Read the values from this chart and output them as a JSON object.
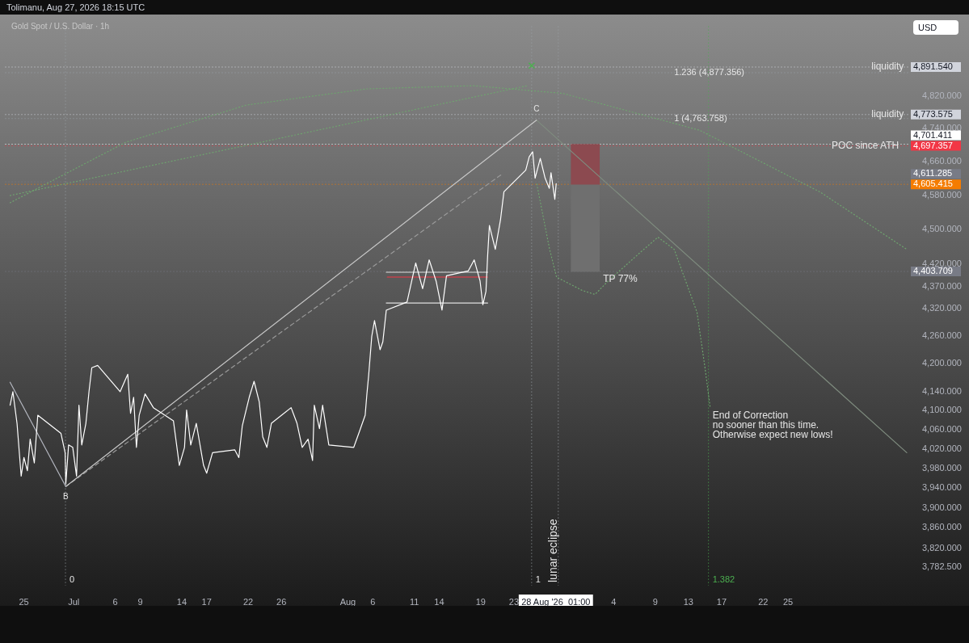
{
  "chart_data": {
    "type": "line",
    "title": "Gold Spot / U.S. Dollar · 1h",
    "subtitle": "Tolimanu, Aug 27, 2026 18:15 UTC",
    "ylabel": "USD",
    "log": true,
    "grid": false,
    "legend": false,
    "marker": "none",
    "xlim": [
      "2026-06-22T18:00",
      "2026-10-09T14:00"
    ],
    "xticks": [
      {
        "value": "2026-06-25",
        "label": "25"
      },
      {
        "value": "2026-07-01",
        "label": "Jul"
      },
      {
        "value": "2026-07-06",
        "label": "6"
      },
      {
        "value": "2026-07-09",
        "label": "9"
      },
      {
        "value": "2026-07-14",
        "label": "14"
      },
      {
        "value": "2026-07-17",
        "label": "17"
      },
      {
        "value": "2026-07-22",
        "label": "22"
      },
      {
        "value": "2026-07-26",
        "label": "26"
      },
      {
        "value": "2026-08-03",
        "label": "Aug"
      },
      {
        "value": "2026-08-06",
        "label": "6"
      },
      {
        "value": "2026-08-11",
        "label": "11"
      },
      {
        "value": "2026-08-14",
        "label": "14"
      },
      {
        "value": "2026-08-19",
        "label": "19"
      },
      {
        "value": "2026-08-23",
        "label": "23"
      },
      {
        "value": "2026-08-28T01:00",
        "label": "28 Aug '26  01:00"
      },
      {
        "value": "2026-09-04",
        "label": "4"
      },
      {
        "value": "2026-09-09",
        "label": "9"
      },
      {
        "value": "2026-09-13",
        "label": "13"
      },
      {
        "value": "2026-09-17",
        "label": "17"
      },
      {
        "value": "2026-09-22",
        "label": "22"
      },
      {
        "value": "2026-09-25",
        "label": "25"
      }
    ],
    "ylim": [
      3747,
      4995
    ],
    "yticks": [
      {
        "value": 3782.5,
        "label": "3,782.500"
      },
      {
        "value": 3820,
        "label": "3,820.000"
      },
      {
        "value": 3860,
        "label": "3,860.000"
      },
      {
        "value": 3900,
        "label": "3,900.000"
      },
      {
        "value": 3940,
        "label": "3,940.000"
      },
      {
        "value": 3980,
        "label": "3,980.000"
      },
      {
        "value": 4020,
        "label": "4,020.000"
      },
      {
        "value": 4060,
        "label": "4,060.000"
      },
      {
        "value": 4100,
        "label": "4,100.000"
      },
      {
        "value": 4140,
        "label": "4,140.000"
      },
      {
        "value": 4200,
        "label": "4,200.000"
      },
      {
        "value": 4260,
        "label": "4,260.000"
      },
      {
        "value": 4320,
        "label": "4,320.000"
      },
      {
        "value": 4370,
        "label": "4,370.000"
      },
      {
        "value": 4420,
        "label": "4,420.000"
      },
      {
        "value": 4500,
        "label": "4,500.000"
      },
      {
        "value": 4580,
        "label": "4,580.000"
      },
      {
        "value": 4660,
        "label": "4,660.000"
      },
      {
        "value": 4740,
        "label": "4,740.000"
      },
      {
        "value": 4820,
        "label": "4,820.000"
      }
    ],
    "series": [
      {
        "color": "#ffffff",
        "x": [
          "2026-06-23T08:00",
          "2026-06-23T16:00",
          "2026-06-24T04:00",
          "2026-06-24T16:00",
          "2026-06-25T00:00",
          "2026-06-25T10:00",
          "2026-06-25T18:00",
          "2026-06-26T06:00",
          "2026-06-26T16:00",
          "2026-06-29T11:00",
          "2026-06-29T23:00",
          "2026-06-30T01:00",
          "2026-06-30T09:00",
          "2026-06-30T21:00",
          "2026-07-01T08:00",
          "2026-07-01T15:00",
          "2026-07-01T23:00",
          "2026-07-02T11:00",
          "2026-07-02T20:00",
          "2026-07-03T04:00",
          "2026-07-03T21:00",
          "2026-07-06T14:00",
          "2026-07-07T12:00",
          "2026-07-07T20:00",
          "2026-07-08T05:00",
          "2026-07-08T13:00",
          "2026-07-08T21:00",
          "2026-07-09T14:00",
          "2026-07-10T14:00",
          "2026-07-13T00:00",
          "2026-07-13T17:00",
          "2026-07-14T08:00",
          "2026-07-14T14:00",
          "2026-07-15T02:00",
          "2026-07-15T18:00",
          "2026-07-16T15:00",
          "2026-07-17T00:00",
          "2026-07-17T17:00",
          "2026-07-20T09:00",
          "2026-07-20T21:00",
          "2026-07-21T07:00",
          "2026-07-22T03:00",
          "2026-07-22T17:00",
          "2026-07-23T08:00",
          "2026-07-23T18:00",
          "2026-07-24T06:00",
          "2026-07-24T19:00",
          "2026-07-27T04:00",
          "2026-07-27T21:00",
          "2026-07-28T12:00",
          "2026-07-29T05:00",
          "2026-07-29T18:00",
          "2026-07-29T23:00",
          "2026-07-30T14:00",
          "2026-07-30T23:00",
          "2026-07-31T17:00",
          "2026-08-03T17:00",
          "2026-08-04T10:00",
          "2026-08-05T02:00",
          "2026-08-05T07:00",
          "2026-08-05T12:00",
          "2026-08-05T21:00",
          "2026-08-06T05:00",
          "2026-08-06T21:00",
          "2026-08-07T05:00",
          "2026-08-07T15:00",
          "2026-08-10T03:00",
          "2026-08-11T04:00",
          "2026-08-12T00:00",
          "2026-08-12T19:00",
          "2026-08-13T15:00",
          "2026-08-14T08:00",
          "2026-08-14T21:00",
          "2026-08-17T12:00",
          "2026-08-18T05:00",
          "2026-08-18T22:00",
          "2026-08-19T06:00",
          "2026-08-19T15:00",
          "2026-08-19T20:00",
          "2026-08-20T01:00",
          "2026-08-20T18:00",
          "2026-08-21T09:00",
          "2026-08-21T19:00",
          "2026-08-24T10:00",
          "2026-08-24T20:00",
          "2026-08-25T06:00",
          "2026-08-25T13:00",
          "2026-08-26T04:00",
          "2026-08-26T18:00",
          "2026-08-27T06:00",
          "2026-08-27T11:00",
          "2026-08-27T22:00",
          "2026-08-28T02:00"
        ],
        "values": [
          4111,
          4140,
          4073,
          3964,
          4002,
          3975,
          4040,
          3991,
          4090,
          4052,
          4012,
          3948,
          4028,
          4023,
          3964,
          4111,
          4028,
          4073,
          4140,
          4191,
          4196,
          4140,
          4177,
          4094,
          4128,
          4023,
          4090,
          4135,
          4106,
          4078,
          3986,
          4023,
          4101,
          4028,
          4073,
          3986,
          3970,
          4012,
          4018,
          4002,
          4068,
          4128,
          4162,
          4118,
          4045,
          4023,
          4073,
          4106,
          4073,
          4023,
          4040,
          3996,
          4111,
          4062,
          4111,
          4028,
          4023,
          4057,
          4090,
          4135,
          4174,
          4259,
          4294,
          4230,
          4247,
          4317,
          4335,
          4423,
          4365,
          4430,
          4382,
          4317,
          4394,
          4405,
          4430,
          4382,
          4329,
          4359,
          4441,
          4509,
          4454,
          4522,
          4588,
          4639,
          4671,
          4683,
          4620,
          4667,
          4620,
          4596,
          4633,
          4570,
          4607
        ]
      },
      {
        "type": "line",
        "color": "#b2b5be",
        "x": [
          "2026-06-23T08:00",
          "2026-06-30T01:00"
        ],
        "values": [
          4160,
          3943
        ]
      },
      {
        "type": "line",
        "color": "#c8c8c8",
        "x": [
          "2026-06-30T01:00",
          "2026-08-25T17:00"
        ],
        "values": [
          3943,
          4760
        ]
      },
      {
        "type": "line",
        "color": "#9a9a9a",
        "line_style": "dashed",
        "x": [
          "2026-06-30T01:00",
          "2026-08-21T14:00"
        ],
        "values": [
          3943,
          4630
        ]
      },
      {
        "type": "line",
        "color": "#6fa56f",
        "line_style": "dotted",
        "x": [
          "2026-06-23T08:00",
          "2026-08-24T15:00"
        ],
        "values": [
          4579,
          4845
        ]
      },
      {
        "type": "line",
        "color": "#6fa56f",
        "line_style": "dotted",
        "x": [
          "2026-06-23T08:00",
          "2026-07-07T06:00",
          "2026-07-21T19:00",
          "2026-08-05T07:00",
          "2026-08-18T02:00",
          "2026-08-28T20:00",
          "2026-09-14T09:00",
          "2026-09-28T21:00",
          "2026-10-09T07:00"
        ],
        "values": [
          4562,
          4706,
          4797,
          4837,
          4845,
          4826,
          4735,
          4587,
          4454
        ]
      },
      {
        "type": "line",
        "color": "#6fa56f",
        "line_style": "dotted",
        "x": [
          "2026-08-25T18:00",
          "2026-08-26T13:00",
          "2026-08-27T07:00",
          "2026-08-28T03:00",
          "2026-08-31T05:00",
          "2026-09-01T18:00",
          "2026-09-03T08:00",
          "2026-09-07T02:00",
          "2026-09-09T08:00",
          "2026-09-11T07:00",
          "2026-09-14T01:00",
          "2026-09-15T00:00",
          "2026-09-15T15:00"
        ],
        "values": [
          4606,
          4527,
          4454,
          4391,
          4361,
          4352,
          4382,
          4445,
          4482,
          4454,
          4312,
          4191,
          4106
        ]
      },
      {
        "type": "line",
        "color": "#7f8c7f",
        "x": [
          "2026-08-25T17:00",
          "2026-10-09T07:00"
        ],
        "values": [
          4760,
          4012
        ]
      },
      {
        "type": "line",
        "color": "#e0e0e0",
        "x": [
          "2026-08-07T15:00",
          "2026-08-19T20:00"
        ],
        "values": [
          4402,
          4402
        ]
      },
      {
        "type": "line",
        "color": "#e0e0e0",
        "x": [
          "2026-08-07T15:00",
          "2026-08-19T20:00"
        ],
        "values": [
          4333,
          4333
        ]
      },
      {
        "type": "line",
        "color": "#f23645",
        "x": [
          "2026-08-07T18:00",
          "2026-08-19T20:00"
        ],
        "values": [
          4391,
          4391
        ]
      },
      {
        "type": "scatter",
        "color": "#4caf50",
        "marker": "cross",
        "x": [
          "2026-08-25T03:00"
        ],
        "values": [
          4895
        ]
      },
      {
        "type": "bar",
        "color": "#8c4a50",
        "x": [
          "2026-08-31T14:00"
        ],
        "base": [
          4605.415
        ],
        "values": [
          95.996
        ]
      },
      {
        "type": "bar",
        "color": "#6f6f6f",
        "x": [
          "2026-08-31T14:00"
        ],
        "base": [
          4403.709
        ],
        "values": [
          201.706
        ]
      }
    ],
    "ref_lines": [
      {
        "axis": "y",
        "value": 4891.54,
        "label": "4,891.540",
        "color": "#d1d4dc",
        "line_style": "dotted"
      },
      {
        "axis": "y",
        "value": 4877.356,
        "label": "1.236 (4,877.356)",
        "line_style": "dotted"
      },
      {
        "axis": "y",
        "value": 4773.575,
        "label": "4,773.575",
        "color": "#d1d4dc",
        "line_style": "dotted"
      },
      {
        "axis": "y",
        "value": 4763.758,
        "label": "1 (4,763.758)",
        "line_style": "dotted"
      },
      {
        "axis": "y",
        "value": 4701.411,
        "label": "4,701.411",
        "color": "#ffffff",
        "line_style": "dotted"
      },
      {
        "axis": "y",
        "value": 4697.357,
        "label": "4,697.357",
        "color": "#f23645",
        "line_style": "dotted"
      },
      {
        "axis": "y",
        "value": 4611.285,
        "label": "4,611.285",
        "color": "#787b86",
        "line_style": "dotted"
      },
      {
        "axis": "y",
        "value": 4605.415,
        "label": "4,605.415",
        "color": "#f57c00",
        "line_style": "dotted"
      },
      {
        "axis": "y",
        "value": 4403.709,
        "label": "4,403.709",
        "color": "#787b86",
        "line_style": "dotted"
      },
      {
        "axis": "x",
        "value": "2026-06-30T00:00",
        "label": "0",
        "line_style": "dotted"
      },
      {
        "axis": "x",
        "value": "2026-08-25T03:00",
        "label": "1",
        "line_style": "dotted"
      },
      {
        "axis": "x",
        "value": "2026-08-28T08:00",
        "label": "lunar eclipse",
        "line_style": "dotted"
      },
      {
        "axis": "x",
        "value": "2026-09-15T10:00",
        "label": "1.382",
        "color": "#4caf50",
        "line_style": "dotted"
      }
    ],
    "annotations": [
      {
        "text": "B",
        "x": "2026-06-30T01:00",
        "y": 3943
      },
      {
        "text": "C",
        "x": "2026-08-25T17:00",
        "y": 4760
      },
      {
        "text": "TP 77%",
        "x": "2026-08-31T14:00",
        "y": 4403.709
      },
      {
        "text": "End of Correction\nno sooner than this time.\nOtherwise expect new lows!",
        "x": "2026-09-15T15:00",
        "y": 4106
      },
      {
        "text": "liquidity",
        "x": "2026-10-05T01:00",
        "y": 4891.54
      },
      {
        "text": "liquidity",
        "x": "2026-10-05T01:00",
        "y": 4773.575
      },
      {
        "text": "POC since ATH",
        "x": "2026-09-30T06:00",
        "y": 4697.357
      }
    ]
  }
}
